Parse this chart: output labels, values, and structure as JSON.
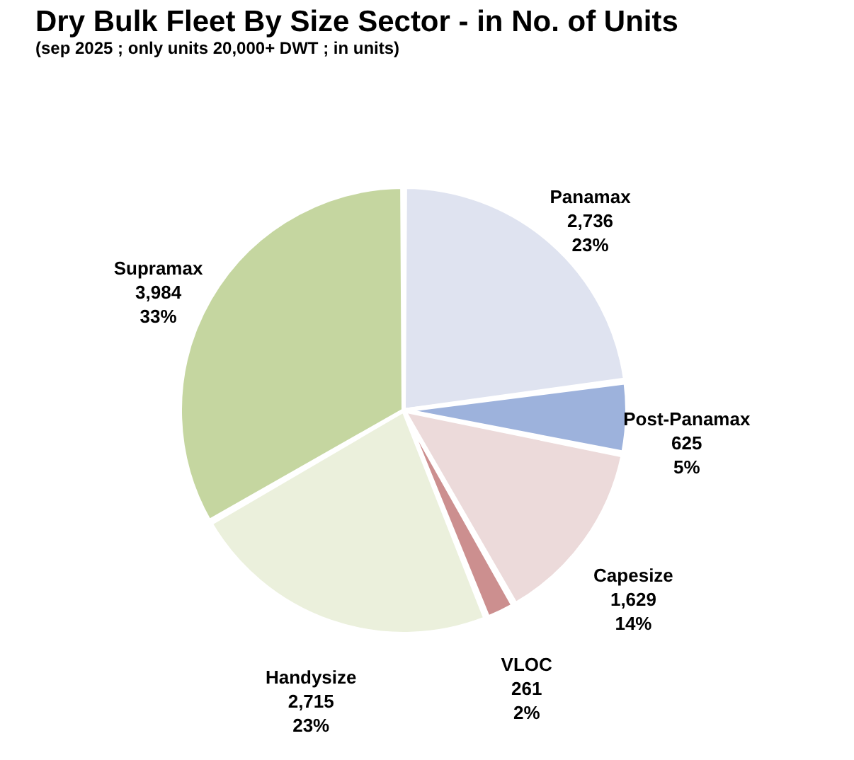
{
  "chart_data": {
    "type": "pie",
    "title": "Dry Bulk Fleet By Size Sector - in No. of Units",
    "subtitle": "(sep 2025 ; only units 20,000+ DWT ; in units)",
    "categories": [
      "Panamax",
      "Post-Panamax",
      "Capesize",
      "VLOC",
      "Handysize",
      "Supramax"
    ],
    "values": [
      2736,
      625,
      1629,
      261,
      2715,
      3984
    ],
    "value_labels": [
      "2,736\n23%",
      "625\n5%",
      "1,629\n14%",
      "261\n2%",
      "2,715\n23%",
      "3,984\n33%"
    ],
    "colors": [
      "#dfe3f0",
      "#9db2dc",
      "#ecdada",
      "#cc8f8f",
      "#ebf0dc",
      "#c5d6a0"
    ],
    "legend": false
  }
}
